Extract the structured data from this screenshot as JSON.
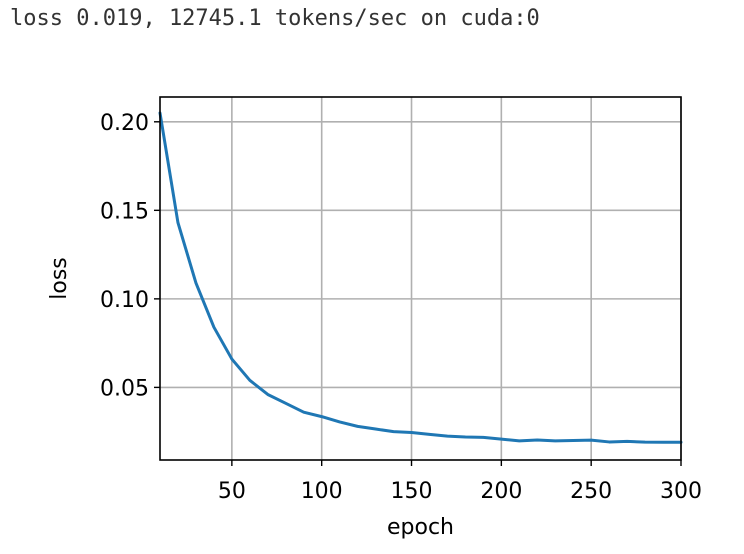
{
  "console": {
    "output": "loss 0.019, 12745.1 tokens/sec on cuda:0"
  },
  "colors": {
    "series": "#1f77b4",
    "grid": "#b0b0b0",
    "axes": "#000000"
  },
  "chart_data": {
    "type": "line",
    "title": "",
    "xlabel": "epoch",
    "ylabel": "loss",
    "xlim": [
      10,
      300
    ],
    "ylim": [
      0.009,
      0.214
    ],
    "grid": true,
    "xticks": [
      50,
      100,
      150,
      200,
      250,
      300
    ],
    "yticks": [
      0.05,
      0.1,
      0.15,
      0.2
    ],
    "xtick_labels": [
      "50",
      "100",
      "150",
      "200",
      "250",
      "300"
    ],
    "ytick_labels": [
      "0.05",
      "0.10",
      "0.15",
      "0.20"
    ],
    "series": [
      {
        "x": [
          10,
          20,
          30,
          40,
          50,
          60,
          70,
          80,
          90,
          100,
          110,
          120,
          130,
          140,
          150,
          160,
          170,
          180,
          190,
          200,
          210,
          220,
          230,
          240,
          250,
          260,
          270,
          280,
          290,
          300
        ],
        "y": [
          0.205,
          0.143,
          0.109,
          0.084,
          0.066,
          0.054,
          0.046,
          0.041,
          0.036,
          0.0335,
          0.0305,
          0.028,
          0.0265,
          0.025,
          0.0245,
          0.0235,
          0.0225,
          0.022,
          0.0218,
          0.0208,
          0.0198,
          0.0203,
          0.0198,
          0.02,
          0.0202,
          0.0192,
          0.0195,
          0.0191,
          0.019,
          0.019
        ]
      }
    ]
  }
}
